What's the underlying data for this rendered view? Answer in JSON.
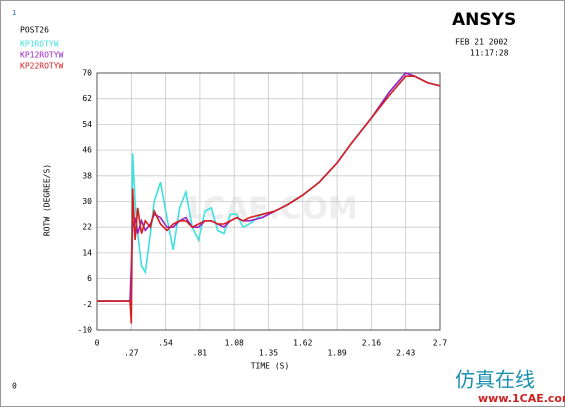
{
  "chart_data": {
    "type": "line",
    "window_number": "1",
    "program": "POST26",
    "logo": "ANSYS",
    "date": "FEB 21 2002",
    "time": "11:17:28",
    "ylabel": "ROTW  (DEGREE/S)",
    "xlabel": "TIME  (S)",
    "corner_label": "0",
    "watermark_center": "1CAE.COM",
    "watermark": "仿真在线",
    "watermark_url": "www.1CAE.com",
    "grid": true,
    "x": [
      0,
      0.1,
      0.2,
      0.26,
      0.27,
      0.28,
      0.3,
      0.32,
      0.35,
      0.38,
      0.42,
      0.45,
      0.5,
      0.55,
      0.6,
      0.65,
      0.7,
      0.75,
      0.8,
      0.85,
      0.9,
      0.95,
      1.0,
      1.05,
      1.1,
      1.15,
      1.2,
      1.3,
      1.4,
      1.5,
      1.62,
      1.75,
      1.89,
      2.0,
      2.16,
      2.3,
      2.43,
      2.5,
      2.6,
      2.7
    ],
    "series": [
      {
        "name": "KP1ROTYW",
        "color": "#3fe0e0",
        "values": [
          -1,
          -1,
          -1,
          -1,
          5,
          45,
          30,
          20,
          10,
          8,
          20,
          30,
          36,
          25,
          15,
          28,
          33,
          22,
          18,
          27,
          28,
          21,
          20,
          26,
          26,
          22,
          23,
          26,
          27,
          29,
          32,
          36,
          42,
          48,
          56,
          64,
          70,
          69,
          67,
          66
        ]
      },
      {
        "name": "KP12ROTYW",
        "color": "#9a20c8",
        "values": [
          -1,
          -1,
          -1,
          -1,
          10,
          22,
          25,
          20,
          24,
          21,
          23,
          26,
          25,
          22,
          22,
          24,
          25,
          22,
          22,
          24,
          24,
          23,
          22,
          24,
          25,
          24,
          24,
          25,
          27,
          29,
          32,
          36,
          42,
          48,
          56,
          64,
          70,
          69,
          67,
          66
        ]
      },
      {
        "name": "KP22ROTYW",
        "color": "#d42020",
        "values": [
          -1,
          -1,
          -1,
          -1,
          -8,
          34,
          18,
          28,
          20,
          24,
          22,
          27,
          23,
          21,
          23,
          24,
          24,
          22,
          23,
          24,
          24,
          23,
          23,
          24,
          25,
          24,
          25,
          26,
          27,
          29,
          32,
          36,
          42,
          48,
          56,
          63,
          69,
          69,
          67,
          66
        ]
      }
    ],
    "xlim": [
      0,
      2.7
    ],
    "xticks": [
      0,
      {
        "value": 0.27,
        "label": ".27"
      },
      {
        "value": 0.54,
        "label": ".54"
      },
      {
        "value": 0.81,
        "label": ".81"
      },
      1.08,
      1.35,
      1.62,
      1.89,
      2.16,
      2.43,
      2.7
    ],
    "ylim": [
      -10,
      70
    ],
    "yticks": [
      -10,
      -2,
      6,
      14,
      22,
      30,
      38,
      46,
      54,
      62,
      70
    ]
  }
}
